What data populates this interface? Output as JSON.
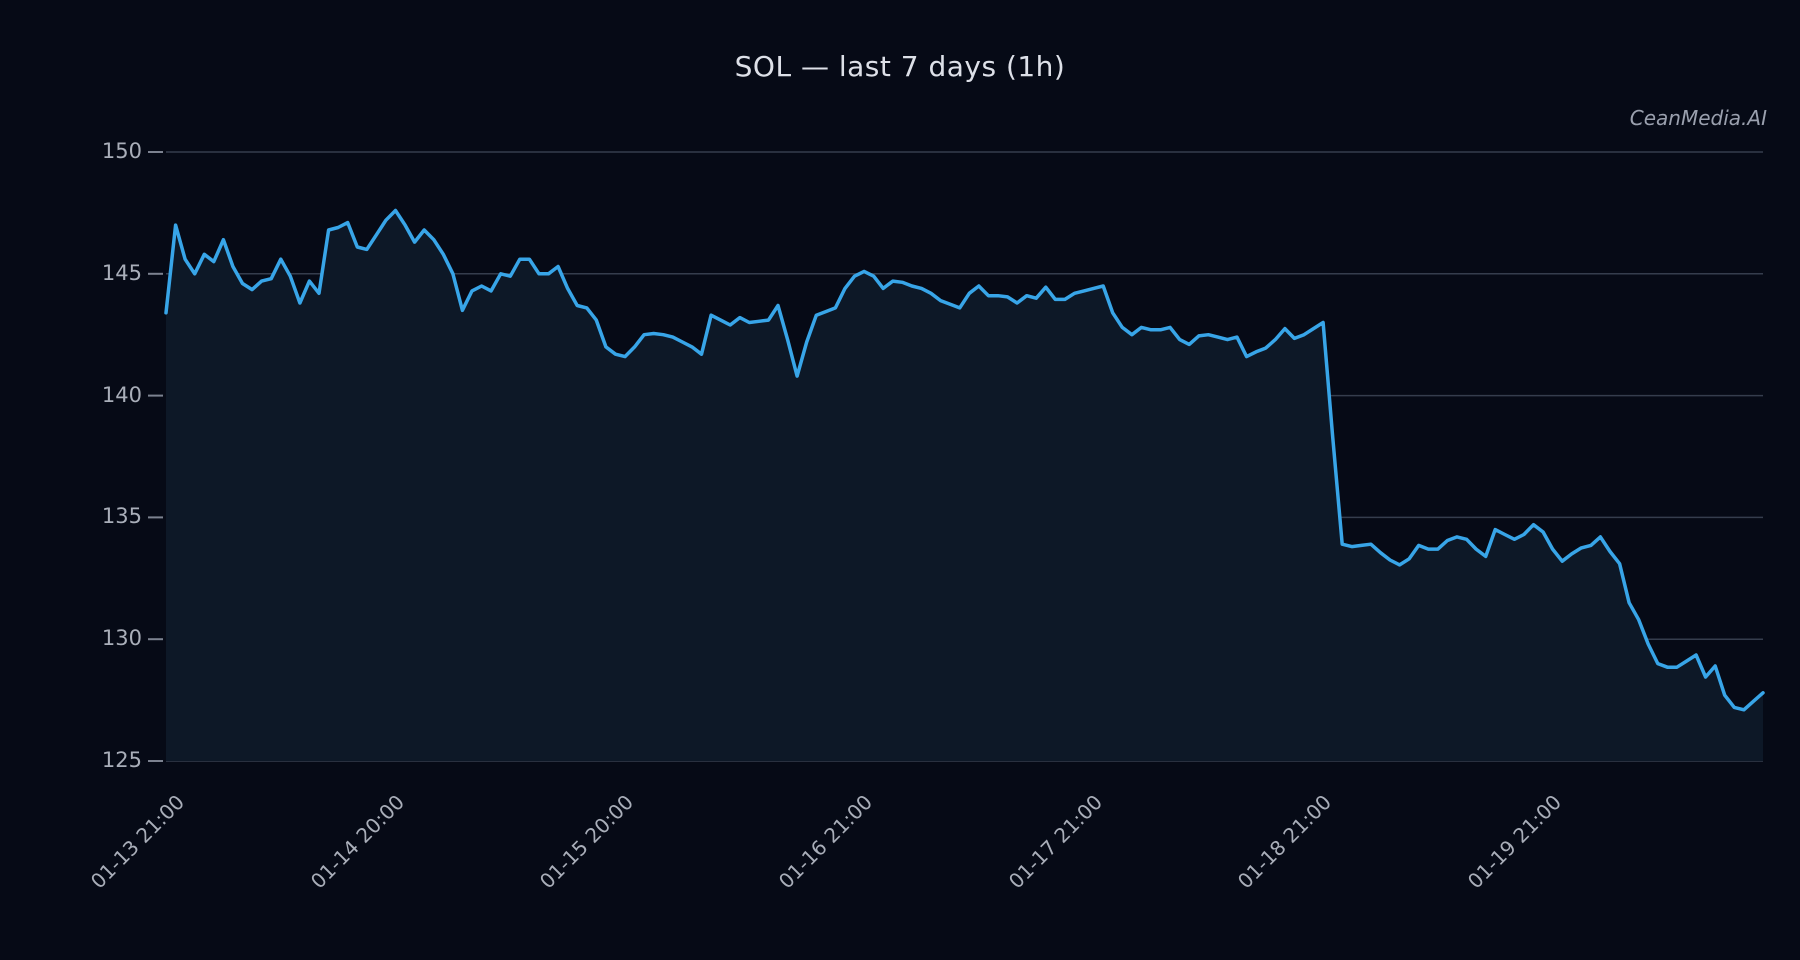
{
  "page": {
    "title": "SOL — last 7 days (1h)",
    "watermark": "CeanMedia.AI"
  },
  "chart_data": {
    "type": "line",
    "title": "SOL — last 7 days (1h)",
    "series_name": "SOL",
    "interval": "1h",
    "period": "last 7 days",
    "grid": true,
    "legend_position": "none",
    "ylim": [
      125,
      150
    ],
    "y_ticks": [
      150,
      145,
      140,
      135,
      130,
      125
    ],
    "x_ticks": [
      {
        "index": 0,
        "label": "01-13 21:00"
      },
      {
        "index": 23,
        "label": "01-14 20:00"
      },
      {
        "index": 47,
        "label": "01-15 20:00"
      },
      {
        "index": 72,
        "label": "01-16 21:00"
      },
      {
        "index": 96,
        "label": "01-17 21:00"
      },
      {
        "index": 120,
        "label": "01-18 21:00"
      },
      {
        "index": 144,
        "label": "01-19 21:00"
      }
    ],
    "values": [
      143.4,
      147.0,
      145.6,
      145.0,
      145.8,
      145.5,
      146.4,
      145.3,
      144.6,
      144.35,
      144.7,
      144.8,
      145.6,
      144.9,
      143.8,
      144.7,
      144.2,
      146.8,
      146.9,
      147.1,
      146.1,
      146.0,
      146.6,
      147.2,
      147.6,
      147.0,
      146.3,
      146.8,
      146.4,
      145.8,
      145.0,
      143.5,
      144.3,
      144.5,
      144.3,
      145.0,
      144.9,
      145.6,
      145.6,
      145.0,
      145.0,
      145.3,
      144.4,
      143.7,
      143.6,
      143.1,
      142.0,
      141.7,
      141.6,
      142.0,
      142.5,
      142.55,
      142.5,
      142.4,
      142.2,
      142.0,
      141.7,
      143.3,
      143.1,
      142.9,
      143.2,
      143.0,
      143.05,
      143.1,
      143.7,
      142.3,
      140.8,
      142.2,
      143.3,
      143.45,
      143.6,
      144.4,
      144.9,
      145.1,
      144.9,
      144.4,
      144.7,
      144.65,
      144.5,
      144.4,
      144.2,
      143.9,
      143.75,
      143.6,
      144.2,
      144.5,
      144.1,
      144.1,
      144.05,
      143.8,
      144.1,
      144.0,
      144.45,
      143.95,
      143.95,
      144.2,
      144.3,
      144.4,
      144.5,
      143.4,
      142.8,
      142.5,
      142.8,
      142.7,
      142.7,
      142.8,
      142.3,
      142.1,
      142.45,
      142.5,
      142.4,
      142.3,
      142.4,
      141.6,
      141.8,
      141.95,
      142.3,
      142.75,
      142.35,
      142.5,
      142.75,
      143.0,
      138.3,
      133.9,
      133.8,
      133.85,
      133.9,
      133.55,
      133.25,
      133.05,
      133.3,
      133.85,
      133.7,
      133.7,
      134.05,
      134.2,
      134.1,
      133.7,
      133.4,
      134.5,
      134.3,
      134.1,
      134.3,
      134.7,
      134.4,
      133.7,
      133.2,
      133.5,
      133.75,
      133.85,
      134.2,
      133.6,
      133.1,
      131.5,
      130.8,
      129.8,
      129.0,
      128.85,
      128.85,
      129.1,
      129.35,
      128.45,
      128.9,
      127.7,
      127.2,
      127.1,
      127.45,
      127.8
    ],
    "colors": {
      "background": "#060a16",
      "line": "#38a5e8",
      "area_fill": "#0d1827",
      "gridline": "#353d4d",
      "tick_mark": "#7c8290",
      "tick_label": "#a9aeb9",
      "title_text": "#dde0e8",
      "watermark_text": "#9aa0ae"
    }
  }
}
